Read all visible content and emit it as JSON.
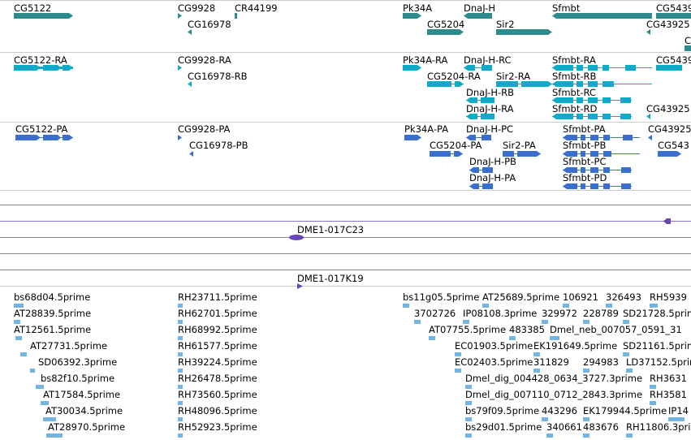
{
  "colors": {
    "gene": "#2e8b8b",
    "transcript": "#10aac7",
    "protein": "#3a6fd0",
    "clone": "#6a47b7",
    "est": "#74b4e0",
    "track_border": "#cccccc",
    "clone_line": "#b2a6dc"
  },
  "genes": [
    {
      "label": "CG5122"
    },
    {
      "label": "CG9928"
    },
    {
      "label": "CR44199"
    },
    {
      "label": "CG16978"
    },
    {
      "label": "Pk34A"
    },
    {
      "label": "DnaJ-H"
    },
    {
      "label": "Sfmbt"
    },
    {
      "label": "CG5439"
    },
    {
      "label": "CG5204"
    },
    {
      "label": "Sir2"
    },
    {
      "label": "CG43925"
    },
    {
      "label": "C"
    }
  ],
  "transcripts": [
    {
      "label": "CG5122-RA"
    },
    {
      "label": "CG9928-RA"
    },
    {
      "label": "CG16978-RB"
    },
    {
      "label": "Pk34A-RA"
    },
    {
      "label": "DnaJ-H-RC"
    },
    {
      "label": "Sfmbt-RA"
    },
    {
      "label": "CG5439"
    },
    {
      "label": "CG5204-RA"
    },
    {
      "label": "Sir2-RA"
    },
    {
      "label": "Sfmbt-RB"
    },
    {
      "label": "DnaJ-H-RB"
    },
    {
      "label": "Sfmbt-RC"
    },
    {
      "label": "DnaJ-H-RA"
    },
    {
      "label": "Sfmbt-RD"
    },
    {
      "label": "CG43925"
    }
  ],
  "proteins": [
    {
      "label": "CG5122-PA"
    },
    {
      "label": "CG9928-PA"
    },
    {
      "label": "CG16978-PB"
    },
    {
      "label": "Pk34A-PA"
    },
    {
      "label": "DnaJ-H-PC"
    },
    {
      "label": "Sfmbt-PA"
    },
    {
      "label": "CG43925"
    },
    {
      "label": "CG5204-PA"
    },
    {
      "label": "Sir2-PA"
    },
    {
      "label": "Sfmbt-PB"
    },
    {
      "label": "CG543"
    },
    {
      "label": "DnaJ-H-PB"
    },
    {
      "label": "Sfmbt-PC"
    },
    {
      "label": "DnaJ-H-PA"
    },
    {
      "label": "Sfmbt-PD"
    }
  ],
  "clones": [
    {
      "label": "DME1-017C23"
    },
    {
      "label": "DME1-017K19"
    }
  ],
  "ests": [
    {
      "label": "bs68d04.5prime"
    },
    {
      "label": "AT28839.5prime"
    },
    {
      "label": "AT12561.5prime"
    },
    {
      "label": "AT27731.5prime"
    },
    {
      "label": "SD06392.3prime"
    },
    {
      "label": "bs82f10.5prime"
    },
    {
      "label": "AT17584.5prime"
    },
    {
      "label": "AT30034.5prime"
    },
    {
      "label": "AT28970.5prime"
    },
    {
      "label": "RH23711.5prime"
    },
    {
      "label": "RH62701.5prime"
    },
    {
      "label": "RH68992.5prime"
    },
    {
      "label": "RH61577.5prime"
    },
    {
      "label": "RH39224.5prime"
    },
    {
      "label": "RH26478.5prime"
    },
    {
      "label": "RH73560.5prime"
    },
    {
      "label": "RH48096.5prime"
    },
    {
      "label": "RH52923.5prime"
    },
    {
      "label": "bs11g05.5prime"
    },
    {
      "label": "AT25689.5prime"
    },
    {
      "label": "106921"
    },
    {
      "label": "326493"
    },
    {
      "label": "RH5939"
    },
    {
      "label": "3702726"
    },
    {
      "label": "IP08108.3prime"
    },
    {
      "label": "329972"
    },
    {
      "label": "228789"
    },
    {
      "label": "SD21728.5prime"
    },
    {
      "label": "AT07755.5prime"
    },
    {
      "label": "483385"
    },
    {
      "label": "Dmel_neb_007057_0591_31"
    },
    {
      "label": "EC01903.5prime"
    },
    {
      "label": "EK191649.5prime"
    },
    {
      "label": "SD21161.5prime"
    },
    {
      "label": "EC02403.5prime"
    },
    {
      "label": "311829"
    },
    {
      "label": "294983"
    },
    {
      "label": "LD37152.5prime"
    },
    {
      "label": "Dmel_dig_004428_0634_3727.3prime"
    },
    {
      "label": "RH3631"
    },
    {
      "label": "Dmel_dig_007110_0712_2843.3prime"
    },
    {
      "label": "RH3581"
    },
    {
      "label": "bs79f09.5prime"
    },
    {
      "label": "443296"
    },
    {
      "label": "EK179944.5prime"
    },
    {
      "label": "IP14"
    },
    {
      "label": "bs29d01.5prime"
    },
    {
      "label": "340661"
    },
    {
      "label": "483676"
    },
    {
      "label": "RH11806.3prime"
    }
  ]
}
